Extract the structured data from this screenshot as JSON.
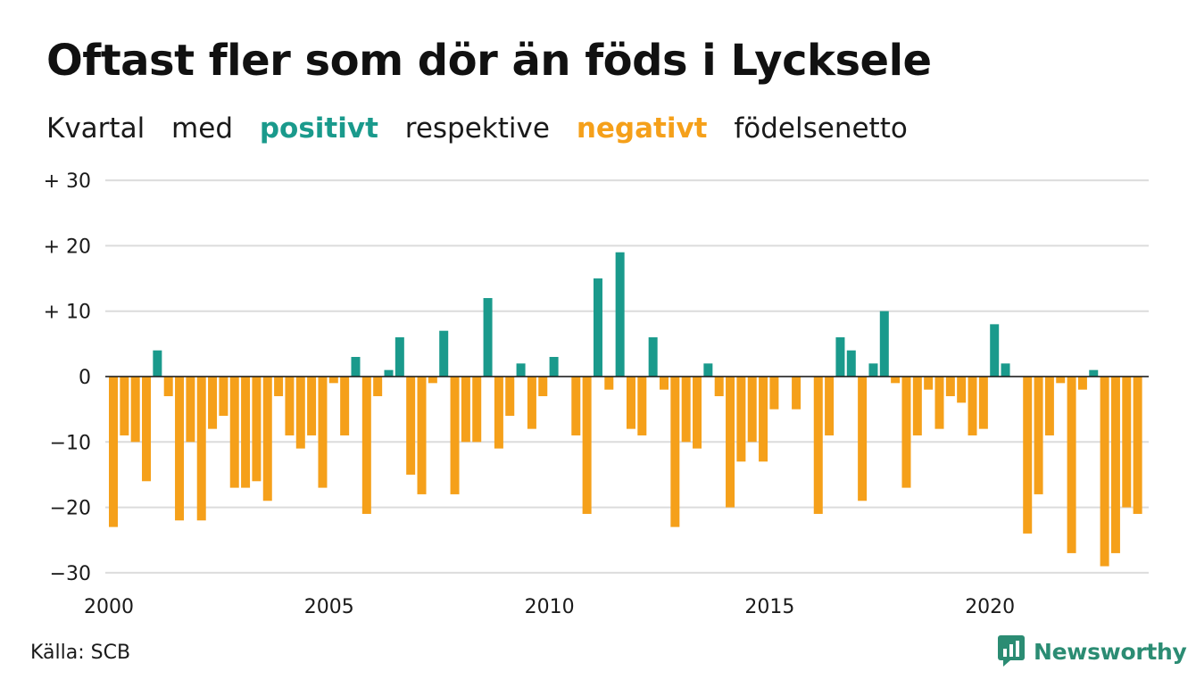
{
  "title": "Oftast fler som dör än föds i Lycksele",
  "subtitle": {
    "parts": [
      "Kvartal",
      "med",
      "positivt",
      "respektive",
      "negativt",
      "födelsenetto"
    ]
  },
  "source": "Källa: SCB",
  "brand": "Newsworthy",
  "colors": {
    "positive": "#1a9a8c",
    "negative": "#f5a01a",
    "brand": "#2b8c73"
  },
  "chart_data": {
    "type": "bar",
    "x_start_year": 2000,
    "periods_per_year": 4,
    "ylim": [
      -30,
      30
    ],
    "yticks": [
      30,
      20,
      10,
      0,
      -10,
      -20,
      -30
    ],
    "ytick_labels": [
      "+ 30",
      "+ 20",
      "+ 10",
      "0",
      "−10",
      "−20",
      "−30"
    ],
    "xticks": [
      2000,
      2005,
      2010,
      2015,
      2020
    ],
    "xtick_labels": [
      "2000",
      "2005",
      "2010",
      "2015",
      "2020"
    ],
    "values": [
      -23,
      -9,
      -10,
      -16,
      4,
      -3,
      -22,
      -10,
      -22,
      -8,
      -6,
      -17,
      -17,
      -16,
      -19,
      -3,
      -9,
      -11,
      -9,
      -17,
      -1,
      -9,
      3,
      -21,
      -3,
      1,
      6,
      -15,
      -18,
      -1,
      7,
      -18,
      -10,
      -10,
      12,
      -11,
      -6,
      2,
      -8,
      -3,
      3,
      0,
      -9,
      -21,
      15,
      -2,
      19,
      -8,
      -9,
      6,
      -2,
      -23,
      -10,
      -11,
      2,
      -3,
      -20,
      -13,
      -10,
      -13,
      -5,
      0,
      -5,
      0,
      -21,
      -9,
      6,
      4,
      -19,
      2,
      10,
      -1,
      -17,
      -9,
      -2,
      -8,
      -3,
      -4,
      -9,
      -8,
      8,
      2,
      0,
      -24,
      -18,
      -9,
      -1,
      -27,
      -2,
      1,
      -29,
      -27,
      -20,
      -21
    ],
    "grid": true,
    "legend": "none"
  }
}
